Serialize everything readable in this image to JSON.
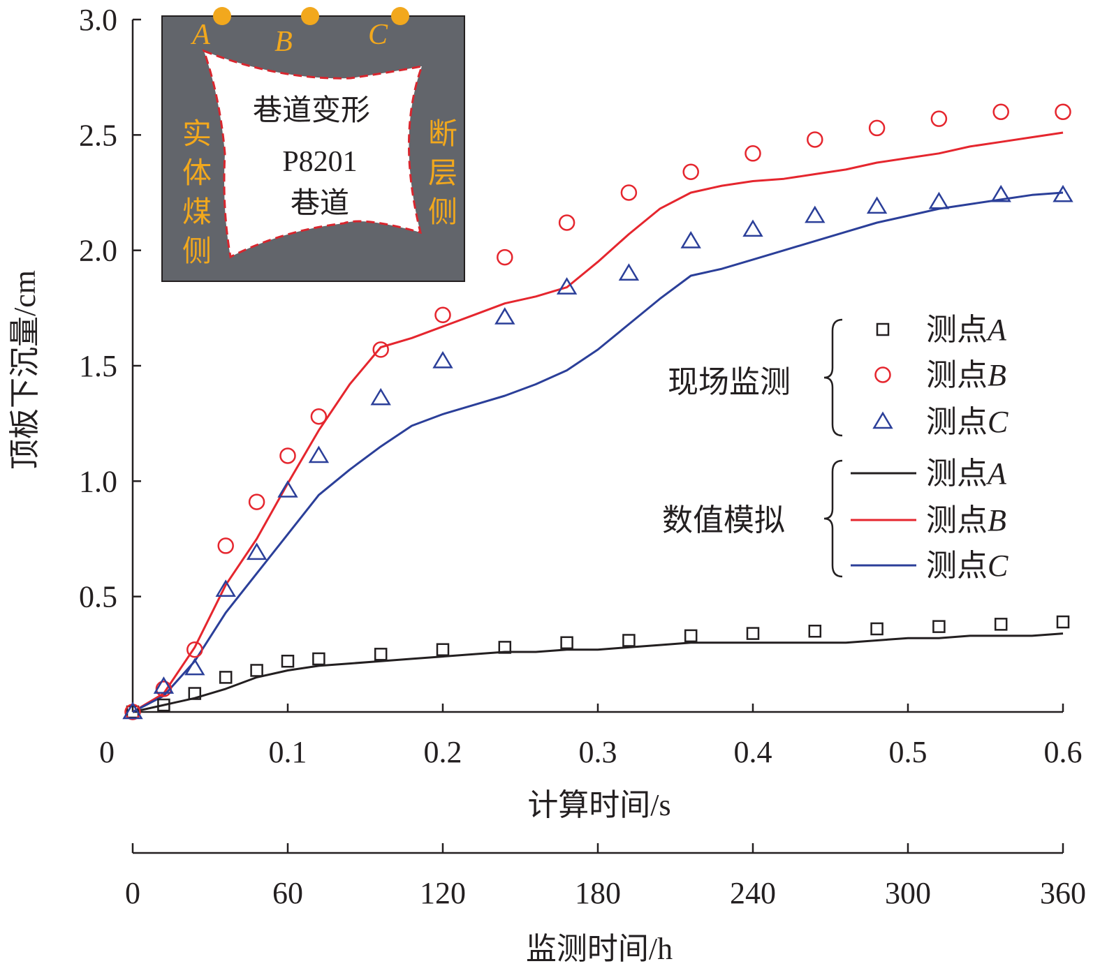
{
  "colors": {
    "A": "#231f20",
    "B": "#e5262e",
    "C": "#2b3f99",
    "inset_bg": "#62656b",
    "inset_label": "#f2a81d",
    "inset_dash": "#d8262e"
  },
  "chart_data": {
    "type": "line",
    "xlabel": "计算时间/s",
    "x2label": "监测时间/h",
    "ylabel": "顶板下沉量/cm",
    "xlim": [
      0,
      0.6
    ],
    "ylim": [
      0,
      3.0
    ],
    "x_ticks": [
      "0",
      "0.1",
      "0.2",
      "0.3",
      "0.4",
      "0.5",
      "0.6"
    ],
    "x2_ticks": [
      "0",
      "60",
      "120",
      "180",
      "240",
      "300",
      "360"
    ],
    "y_ticks": [
      "0.5",
      "1.0",
      "1.5",
      "2.0",
      "2.5",
      "3.0"
    ],
    "grid": false,
    "legend": {
      "groups": [
        {
          "label": "现场监测",
          "kind": "marker",
          "entries": [
            {
              "prefix": "测点",
              "point": "A",
              "series": "A",
              "marker": "square"
            },
            {
              "prefix": "测点",
              "point": "B",
              "series": "B",
              "marker": "circle"
            },
            {
              "prefix": "测点",
              "point": "C",
              "series": "C",
              "marker": "triangle"
            }
          ]
        },
        {
          "label": "数值模拟",
          "kind": "line",
          "entries": [
            {
              "prefix": "测点",
              "point": "A",
              "series": "A"
            },
            {
              "prefix": "测点",
              "point": "B",
              "series": "B"
            },
            {
              "prefix": "测点",
              "point": "C",
              "series": "C"
            }
          ]
        }
      ]
    },
    "measured": {
      "x": [
        0,
        0.02,
        0.04,
        0.06,
        0.08,
        0.1,
        0.12,
        0.16,
        0.2,
        0.24,
        0.28,
        0.32,
        0.36,
        0.4,
        0.44,
        0.48,
        0.52,
        0.56,
        0.6
      ],
      "series": [
        {
          "name": "A",
          "marker": "square",
          "values": [
            0,
            0.03,
            0.08,
            0.15,
            0.18,
            0.22,
            0.23,
            0.25,
            0.27,
            0.28,
            0.3,
            0.31,
            0.33,
            0.34,
            0.35,
            0.36,
            0.37,
            0.38,
            0.39
          ]
        },
        {
          "name": "B",
          "marker": "circle",
          "values": [
            0,
            0.1,
            0.27,
            0.72,
            0.91,
            1.11,
            1.28,
            1.57,
            1.72,
            1.97,
            2.12,
            2.25,
            2.34,
            2.42,
            2.48,
            2.53,
            2.57,
            2.6,
            2.6
          ]
        },
        {
          "name": "C",
          "marker": "triangle",
          "values": [
            0,
            0.11,
            0.19,
            0.53,
            0.69,
            0.96,
            1.11,
            1.36,
            1.52,
            1.71,
            1.84,
            1.9,
            2.04,
            2.09,
            2.15,
            2.19,
            2.21,
            2.24,
            2.24
          ]
        }
      ]
    },
    "simulated": {
      "x": [
        0,
        0.02,
        0.04,
        0.06,
        0.08,
        0.1,
        0.12,
        0.14,
        0.16,
        0.18,
        0.2,
        0.22,
        0.24,
        0.26,
        0.28,
        0.3,
        0.32,
        0.34,
        0.36,
        0.38,
        0.4,
        0.42,
        0.44,
        0.46,
        0.48,
        0.5,
        0.52,
        0.54,
        0.56,
        0.58,
        0.6
      ],
      "series": [
        {
          "name": "A",
          "values": [
            0,
            0.03,
            0.06,
            0.1,
            0.15,
            0.18,
            0.2,
            0.21,
            0.22,
            0.23,
            0.24,
            0.25,
            0.26,
            0.26,
            0.27,
            0.27,
            0.28,
            0.29,
            0.3,
            0.3,
            0.3,
            0.3,
            0.3,
            0.3,
            0.31,
            0.32,
            0.32,
            0.33,
            0.33,
            0.33,
            0.34
          ]
        },
        {
          "name": "B",
          "values": [
            0,
            0.08,
            0.28,
            0.55,
            0.75,
            0.99,
            1.22,
            1.42,
            1.58,
            1.62,
            1.67,
            1.72,
            1.77,
            1.8,
            1.84,
            1.95,
            2.07,
            2.18,
            2.25,
            2.28,
            2.3,
            2.31,
            2.33,
            2.35,
            2.38,
            2.4,
            2.42,
            2.45,
            2.47,
            2.49,
            2.51
          ]
        },
        {
          "name": "C",
          "values": [
            0,
            0.07,
            0.22,
            0.43,
            0.6,
            0.77,
            0.94,
            1.05,
            1.15,
            1.24,
            1.29,
            1.33,
            1.37,
            1.42,
            1.48,
            1.57,
            1.68,
            1.79,
            1.89,
            1.92,
            1.96,
            2.0,
            2.04,
            2.08,
            2.12,
            2.15,
            2.18,
            2.2,
            2.22,
            2.24,
            2.25
          ]
        }
      ]
    },
    "inset": {
      "title": "巷道变形",
      "name_line1": "P8201",
      "name_line2": "巷道",
      "left_side": [
        "实",
        "体",
        "煤",
        "侧"
      ],
      "right_side": [
        "断",
        "层",
        "侧"
      ],
      "points": [
        "A",
        "B",
        "C"
      ]
    }
  }
}
